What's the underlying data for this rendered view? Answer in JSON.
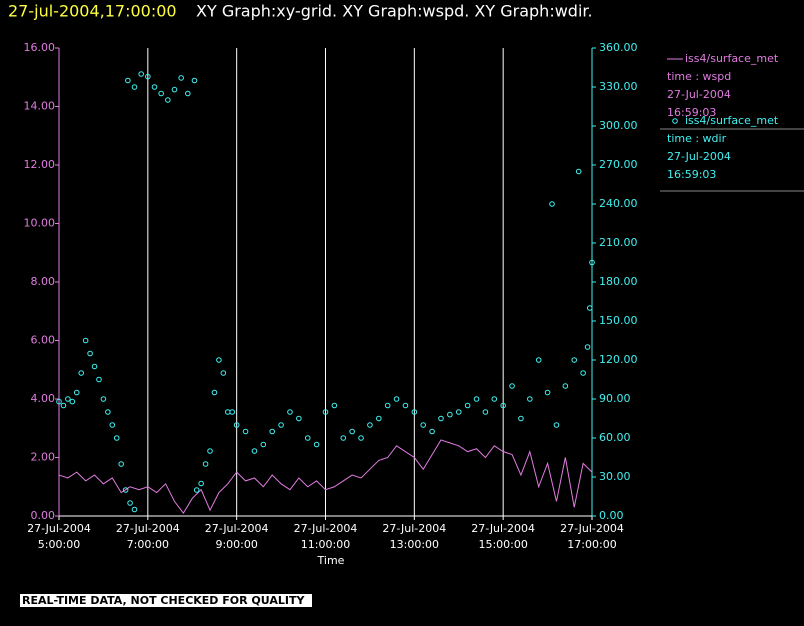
{
  "chart_data": {
    "type": "xy",
    "title_time": "27-jul-2004,17:00:00",
    "title": "XY Graph:xy-grid.  XY Graph:wspd.  XY Graph:wdir.",
    "xlabel": "Time",
    "footer": "REAL-TIME DATA, NOT CHECKED FOR QUALITY",
    "xlim": [
      5,
      17
    ],
    "xticks": [
      {
        "value": 5,
        "label": "27-Jul-2004 5:00:00"
      },
      {
        "value": 7,
        "label": "27-Jul-2004 7:00:00"
      },
      {
        "value": 9,
        "label": "27-Jul-2004 9:00:00"
      },
      {
        "value": 11,
        "label": "27-Jul-2004 11:00:00"
      },
      {
        "value": 13,
        "label": "27-Jul-2004 13:00:00"
      },
      {
        "value": 15,
        "label": "27-Jul-2004 15:00:00"
      },
      {
        "value": 17,
        "label": "27-Jul-2004 17:00:00"
      }
    ],
    "grid": true,
    "ylim": [
      0,
      16
    ],
    "yticks": [
      {
        "value": 0,
        "label": "0.00"
      },
      {
        "value": 2,
        "label": "2.00"
      },
      {
        "value": 4,
        "label": "4.00"
      },
      {
        "value": 6,
        "label": "6.00"
      },
      {
        "value": 8,
        "label": "8.00"
      },
      {
        "value": 10,
        "label": "10.00"
      },
      {
        "value": 12,
        "label": "12.00"
      },
      {
        "value": 14,
        "label": "14.00"
      },
      {
        "value": 16,
        "label": "16.00"
      }
    ],
    "y2lim": [
      0,
      360
    ],
    "y2ticks": [
      {
        "value": 0,
        "label": "0.00"
      },
      {
        "value": 30,
        "label": "30.00"
      },
      {
        "value": 60,
        "label": "60.00"
      },
      {
        "value": 90,
        "label": "90.00"
      },
      {
        "value": 120,
        "label": "120.00"
      },
      {
        "value": 150,
        "label": "150.00"
      },
      {
        "value": 180,
        "label": "180.00"
      },
      {
        "value": 210,
        "label": "210.00"
      },
      {
        "value": 240,
        "label": "240.00"
      },
      {
        "value": 270,
        "label": "270.00"
      },
      {
        "value": 300,
        "label": "300.00"
      },
      {
        "value": 330,
        "label": "330.00"
      },
      {
        "value": 360,
        "label": "360.00"
      }
    ],
    "series": [
      {
        "name": "iss4/surface_met",
        "legend_lines": [
          "time : wspd",
          "27-Jul-2004",
          "16:59:03"
        ],
        "kind": "line",
        "color": "#e07ce0",
        "x": [
          5.0,
          5.2,
          5.4,
          5.6,
          5.8,
          6.0,
          6.2,
          6.4,
          6.6,
          6.8,
          7.0,
          7.2,
          7.4,
          7.6,
          7.8,
          8.0,
          8.2,
          8.4,
          8.6,
          8.8,
          9.0,
          9.2,
          9.4,
          9.6,
          9.8,
          10.0,
          10.2,
          10.4,
          10.6,
          10.8,
          11.0,
          11.2,
          11.4,
          11.6,
          11.8,
          12.0,
          12.2,
          12.4,
          12.6,
          12.8,
          13.0,
          13.2,
          13.4,
          13.6,
          13.8,
          14.0,
          14.2,
          14.4,
          14.6,
          14.8,
          15.0,
          15.2,
          15.4,
          15.6,
          15.8,
          16.0,
          16.2,
          16.4,
          16.6,
          16.8,
          17.0
        ],
        "values": [
          1.4,
          1.3,
          1.5,
          1.2,
          1.4,
          1.1,
          1.3,
          0.8,
          1.0,
          0.9,
          1.0,
          0.8,
          1.1,
          0.5,
          0.1,
          0.6,
          0.9,
          0.2,
          0.8,
          1.1,
          1.5,
          1.2,
          1.3,
          1.0,
          1.4,
          1.1,
          0.9,
          1.3,
          1.0,
          1.2,
          0.9,
          1.0,
          1.2,
          1.4,
          1.3,
          1.6,
          1.9,
          2.0,
          2.4,
          2.2,
          2.0,
          1.6,
          2.1,
          2.6,
          2.5,
          2.4,
          2.2,
          2.3,
          2.0,
          2.4,
          2.2,
          2.1,
          1.4,
          2.2,
          1.0,
          1.8,
          0.5,
          2.0,
          0.3,
          1.8,
          1.5
        ]
      },
      {
        "name": "iss4/surface_met",
        "legend_lines": [
          "time : wdir",
          "27-Jul-2004",
          "16:59:03"
        ],
        "kind": "scatter",
        "axis": "y2",
        "color": "#40f0f0",
        "x": [
          5.0,
          5.1,
          5.2,
          5.3,
          5.4,
          5.5,
          5.6,
          5.7,
          5.8,
          5.9,
          6.0,
          6.1,
          6.2,
          6.3,
          6.4,
          6.5,
          6.55,
          6.6,
          6.7,
          6.7,
          6.85,
          7.0,
          7.15,
          7.3,
          7.45,
          7.6,
          7.75,
          7.9,
          8.05,
          8.1,
          8.2,
          8.3,
          8.4,
          8.5,
          8.6,
          8.7,
          8.8,
          8.9,
          9.0,
          9.2,
          9.4,
          9.6,
          9.8,
          10.0,
          10.2,
          10.4,
          10.6,
          10.8,
          11.0,
          11.2,
          11.4,
          11.6,
          11.8,
          12.0,
          12.2,
          12.4,
          12.6,
          12.8,
          13.0,
          13.2,
          13.4,
          13.6,
          13.8,
          14.0,
          14.2,
          14.4,
          14.6,
          14.8,
          15.0,
          15.2,
          15.4,
          15.6,
          15.8,
          16.0,
          16.1,
          16.2,
          16.4,
          16.6,
          16.7,
          16.8,
          16.9,
          16.95,
          17.0
        ],
        "values": [
          88,
          85,
          90,
          88,
          95,
          110,
          135,
          125,
          115,
          105,
          90,
          80,
          70,
          60,
          40,
          20,
          335,
          10,
          5,
          330,
          340,
          338,
          330,
          325,
          320,
          328,
          337,
          325,
          335,
          20,
          25,
          40,
          50,
          95,
          120,
          110,
          80,
          80,
          70,
          65,
          50,
          55,
          65,
          70,
          80,
          75,
          60,
          55,
          80,
          85,
          60,
          65,
          60,
          70,
          75,
          85,
          90,
          85,
          80,
          70,
          65,
          75,
          78,
          80,
          85,
          90,
          80,
          90,
          85,
          100,
          75,
          90,
          120,
          95,
          240,
          70,
          100,
          120,
          265,
          110,
          130,
          160,
          195
        ]
      }
    ]
  }
}
